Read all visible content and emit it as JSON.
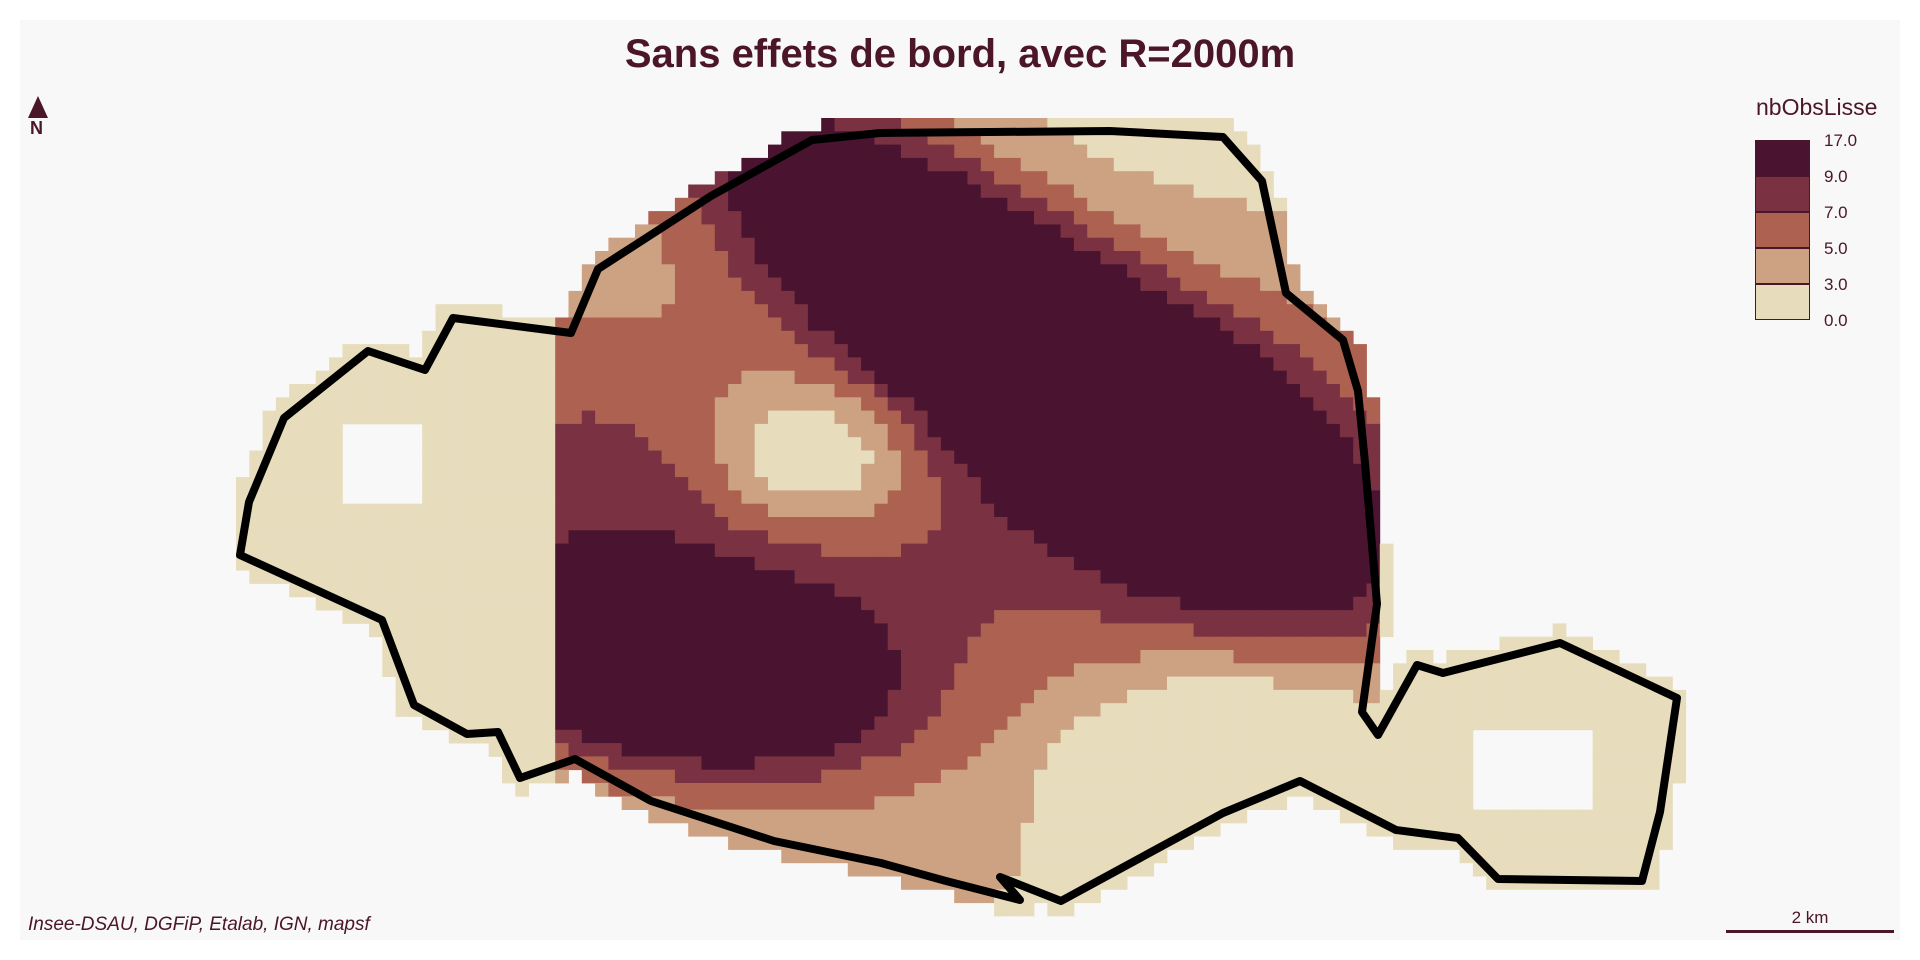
{
  "title": "Sans effets de bord, avec R=2000m",
  "north_label": "N",
  "legend": {
    "title": "nbObsLisse",
    "breaks": [
      "17.0",
      "9.0",
      "7.0",
      "5.0",
      "3.0",
      "0.0"
    ],
    "classes": [
      {
        "range": "9.0 – 17.0",
        "color": "#4a1430"
      },
      {
        "range": "7.0 – 9.0",
        "color": "#7a3242"
      },
      {
        "range": "5.0 – 7.0",
        "color": "#ad6150"
      },
      {
        "range": "3.0 – 5.0",
        "color": "#cda283"
      },
      {
        "range": "0.0 – 3.0",
        "color": "#e7ddbd"
      }
    ]
  },
  "source": "Insee-DSAU, DGFiP, Etalab, IGN, mapsf",
  "scale_label": "2 km",
  "colors": {
    "title_text": "#4a1628",
    "boundary": "#000000",
    "background": "#f8f8f8"
  }
}
